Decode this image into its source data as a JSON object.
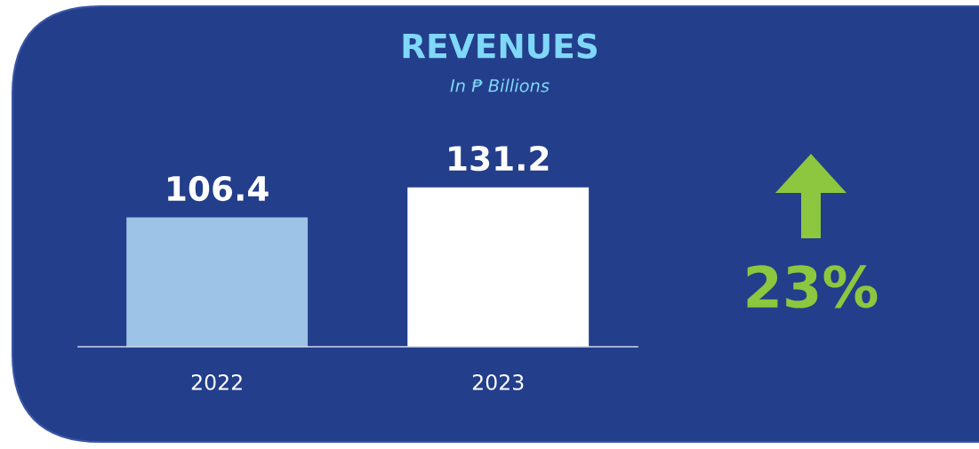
{
  "chart_data": {
    "type": "bar",
    "title": "REVENUES",
    "subtitle": "In ₱ Billions",
    "categories": [
      "2022",
      "2023"
    ],
    "values": [
      106.4,
      131.2
    ],
    "colors": [
      "#9dc3e6",
      "#ffffff"
    ],
    "data_labels": true,
    "annotations": [
      "23%"
    ]
  }
}
